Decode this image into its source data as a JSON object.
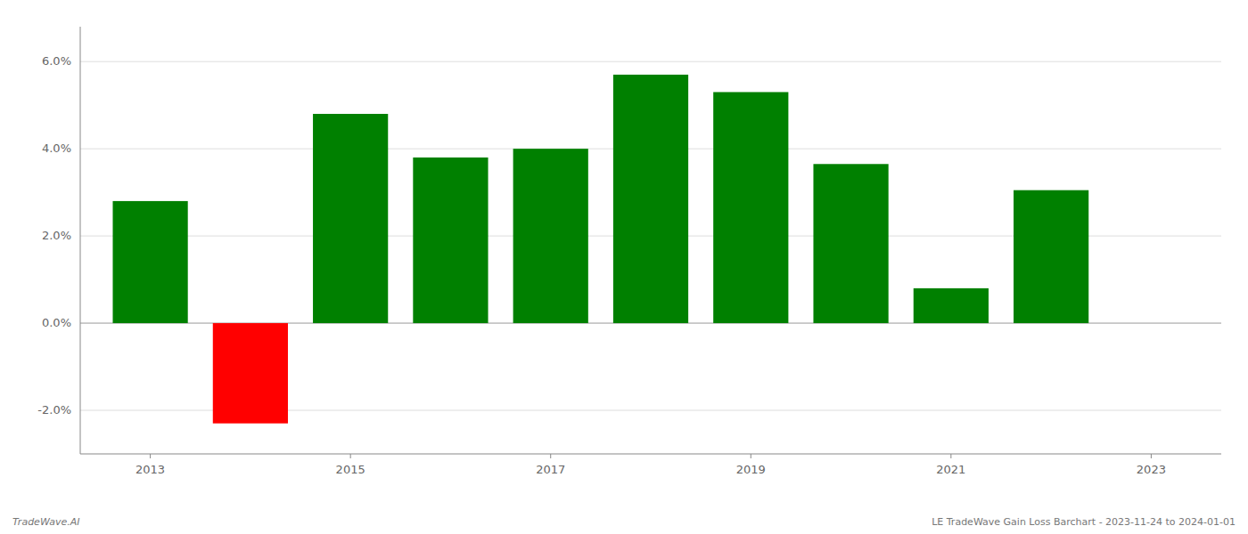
{
  "chart_data": {
    "type": "bar",
    "x": [
      2013,
      2014,
      2015,
      2016,
      2017,
      2018,
      2019,
      2020,
      2021,
      2022
    ],
    "values": [
      0.028,
      -0.023,
      0.048,
      0.038,
      0.04,
      0.057,
      0.053,
      0.0365,
      0.008,
      0.0305
    ],
    "colors": [
      "#008000",
      "#ff0000",
      "#008000",
      "#008000",
      "#008000",
      "#008000",
      "#008000",
      "#008000",
      "#008000",
      "#008000"
    ],
    "xlim": [
      2012.3,
      2023.7
    ],
    "xticks": [
      2013,
      2015,
      2017,
      2019,
      2021,
      2023
    ],
    "ylim": [
      -0.03,
      0.068
    ],
    "yticks": [
      {
        "value": -0.02,
        "label": "-2.0%"
      },
      {
        "value": 0.0,
        "label": "0.0%"
      },
      {
        "value": 0.02,
        "label": "2.0%"
      },
      {
        "value": 0.04,
        "label": "4.0%"
      },
      {
        "value": 0.06,
        "label": "6.0%"
      }
    ],
    "grid": true,
    "annotations": [
      "TradeWave.AI",
      "LE TradeWave Gain Loss Barchart - 2023-11-24 to 2024-01-01"
    ]
  }
}
